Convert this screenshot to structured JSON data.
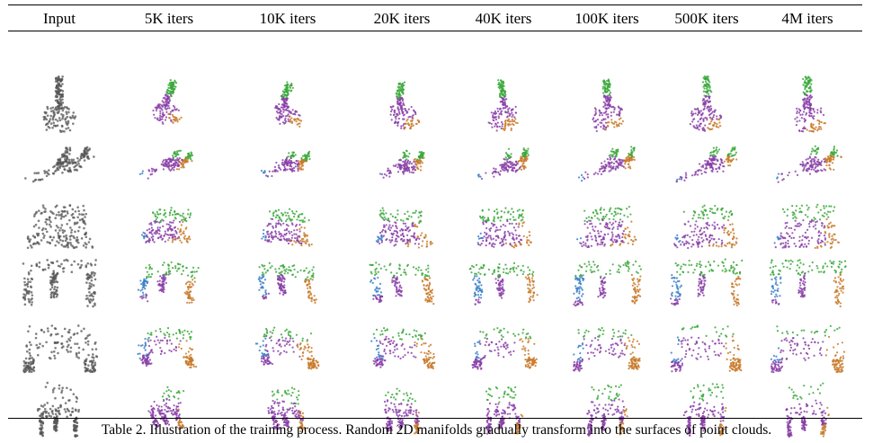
{
  "table": {
    "columns": [
      "Input",
      "5K iters",
      "10K iters",
      "20K iters",
      "40K iters",
      "100K iters",
      "500K iters",
      "4M iters"
    ],
    "rows": [
      {
        "name": "guitar",
        "label": "guitar point cloud"
      },
      {
        "name": "airplane",
        "label": "airplane point cloud"
      },
      {
        "name": "laptop",
        "label": "laptop point cloud"
      },
      {
        "name": "table",
        "label": "table point cloud"
      },
      {
        "name": "sofa",
        "label": "sofa point cloud"
      },
      {
        "name": "chair",
        "label": "chair point cloud"
      }
    ]
  },
  "caption": "Table 2. Illustration of the training process. Random 2D manifolds gradually transform into the surfaces of point clouds.",
  "colors": {
    "input_points": "#555555",
    "green": "#3aa83a",
    "purple": "#8a3fa8",
    "orange": "#c87a2a",
    "blue": "#3a7fc8"
  }
}
